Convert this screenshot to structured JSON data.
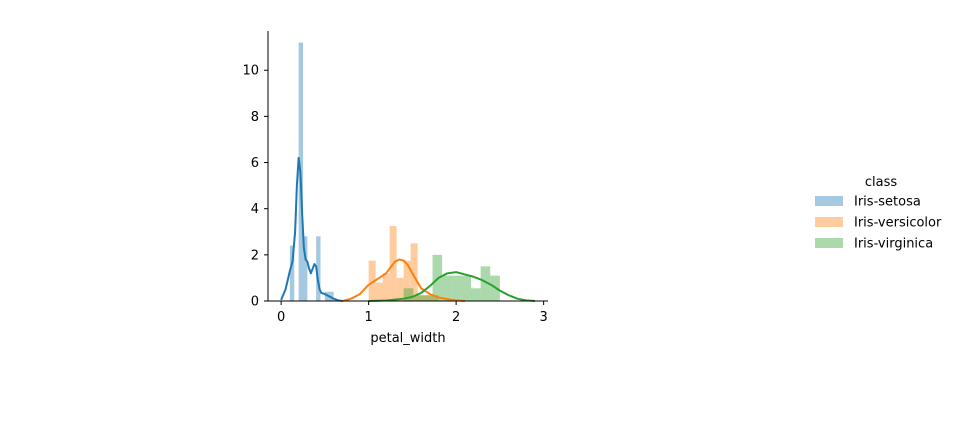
{
  "chart_data": {
    "type": "bar",
    "xlabel": "petal_width",
    "ylabel": "",
    "xlim": [
      -0.15,
      3.05
    ],
    "ylim": [
      0,
      11.7
    ],
    "x_ticks": [
      0,
      1,
      2,
      3
    ],
    "y_ticks": [
      0,
      2,
      4,
      6,
      8,
      10
    ],
    "legend": {
      "title": "class",
      "position": "right"
    },
    "series": [
      {
        "name": "Iris-setosa",
        "color": "#1f77b4",
        "hist": [
          {
            "x0": 0.1,
            "x1": 0.15,
            "y": 2.4
          },
          {
            "x0": 0.15,
            "x1": 0.2,
            "y": 0.0
          },
          {
            "x0": 0.2,
            "x1": 0.25,
            "y": 11.2
          },
          {
            "x0": 0.25,
            "x1": 0.3,
            "y": 2.8
          },
          {
            "x0": 0.3,
            "x1": 0.35,
            "y": 0.0
          },
          {
            "x0": 0.35,
            "x1": 0.4,
            "y": 0.0
          },
          {
            "x0": 0.4,
            "x1": 0.45,
            "y": 2.8
          },
          {
            "x0": 0.45,
            "x1": 0.5,
            "y": 0.0
          },
          {
            "x0": 0.5,
            "x1": 0.55,
            "y": 0.4
          },
          {
            "x0": 0.55,
            "x1": 0.6,
            "y": 0.4
          }
        ],
        "kde": {
          "x": [
            0.0,
            0.05,
            0.1,
            0.13,
            0.16,
            0.18,
            0.2,
            0.22,
            0.24,
            0.26,
            0.28,
            0.3,
            0.32,
            0.34,
            0.36,
            0.38,
            0.4,
            0.42,
            0.44,
            0.46,
            0.5,
            0.55,
            0.6,
            0.65,
            0.7
          ],
          "y": [
            0.05,
            0.5,
            1.3,
            1.7,
            3.0,
            5.0,
            6.2,
            5.6,
            3.8,
            2.3,
            1.8,
            1.7,
            1.4,
            1.2,
            1.4,
            1.6,
            1.5,
            0.9,
            0.5,
            0.35,
            0.3,
            0.2,
            0.1,
            0.03,
            0.0
          ]
        }
      },
      {
        "name": "Iris-versicolor",
        "color": "#ff7f0e",
        "hist": [
          {
            "x0": 1.0,
            "x1": 1.08,
            "y": 1.75
          },
          {
            "x0": 1.08,
            "x1": 1.16,
            "y": 0.8
          },
          {
            "x0": 1.16,
            "x1": 1.24,
            "y": 1.2
          },
          {
            "x0": 1.24,
            "x1": 1.32,
            "y": 3.25
          },
          {
            "x0": 1.32,
            "x1": 1.4,
            "y": 1.0
          },
          {
            "x0": 1.4,
            "x1": 1.48,
            "y": 1.75
          },
          {
            "x0": 1.48,
            "x1": 1.56,
            "y": 2.5
          },
          {
            "x0": 1.56,
            "x1": 1.64,
            "y": 0.25
          },
          {
            "x0": 1.64,
            "x1": 1.72,
            "y": 0.25
          },
          {
            "x0": 1.72,
            "x1": 1.8,
            "y": 0.25
          }
        ],
        "kde": {
          "x": [
            0.7,
            0.8,
            0.9,
            1.0,
            1.1,
            1.2,
            1.25,
            1.3,
            1.35,
            1.4,
            1.45,
            1.5,
            1.6,
            1.7,
            1.8,
            1.9,
            2.0,
            2.1
          ],
          "y": [
            0.0,
            0.1,
            0.3,
            0.7,
            0.95,
            1.2,
            1.45,
            1.7,
            1.8,
            1.75,
            1.55,
            1.2,
            0.55,
            0.3,
            0.15,
            0.08,
            0.03,
            0.0
          ]
        }
      },
      {
        "name": "Iris-virginica",
        "color": "#2ca02c",
        "hist": [
          {
            "x0": 1.4,
            "x1": 1.51,
            "y": 0.55
          },
          {
            "x0": 1.51,
            "x1": 1.62,
            "y": 0.25
          },
          {
            "x0": 1.62,
            "x1": 1.73,
            "y": 0.25
          },
          {
            "x0": 1.73,
            "x1": 1.84,
            "y": 2.0
          },
          {
            "x0": 1.84,
            "x1": 1.95,
            "y": 1.1
          },
          {
            "x0": 1.95,
            "x1": 2.06,
            "y": 1.1
          },
          {
            "x0": 2.06,
            "x1": 2.17,
            "y": 1.1
          },
          {
            "x0": 2.17,
            "x1": 2.28,
            "y": 0.55
          },
          {
            "x0": 2.28,
            "x1": 2.39,
            "y": 1.5
          },
          {
            "x0": 2.39,
            "x1": 2.5,
            "y": 1.1
          }
        ],
        "kde": {
          "x": [
            1.0,
            1.2,
            1.4,
            1.5,
            1.6,
            1.7,
            1.8,
            1.9,
            2.0,
            2.1,
            2.2,
            2.3,
            2.4,
            2.5,
            2.6,
            2.7,
            2.8,
            2.9
          ],
          "y": [
            0.0,
            0.02,
            0.1,
            0.18,
            0.35,
            0.65,
            1.0,
            1.2,
            1.25,
            1.15,
            1.05,
            0.9,
            0.7,
            0.45,
            0.25,
            0.1,
            0.03,
            0.0
          ]
        }
      }
    ]
  }
}
